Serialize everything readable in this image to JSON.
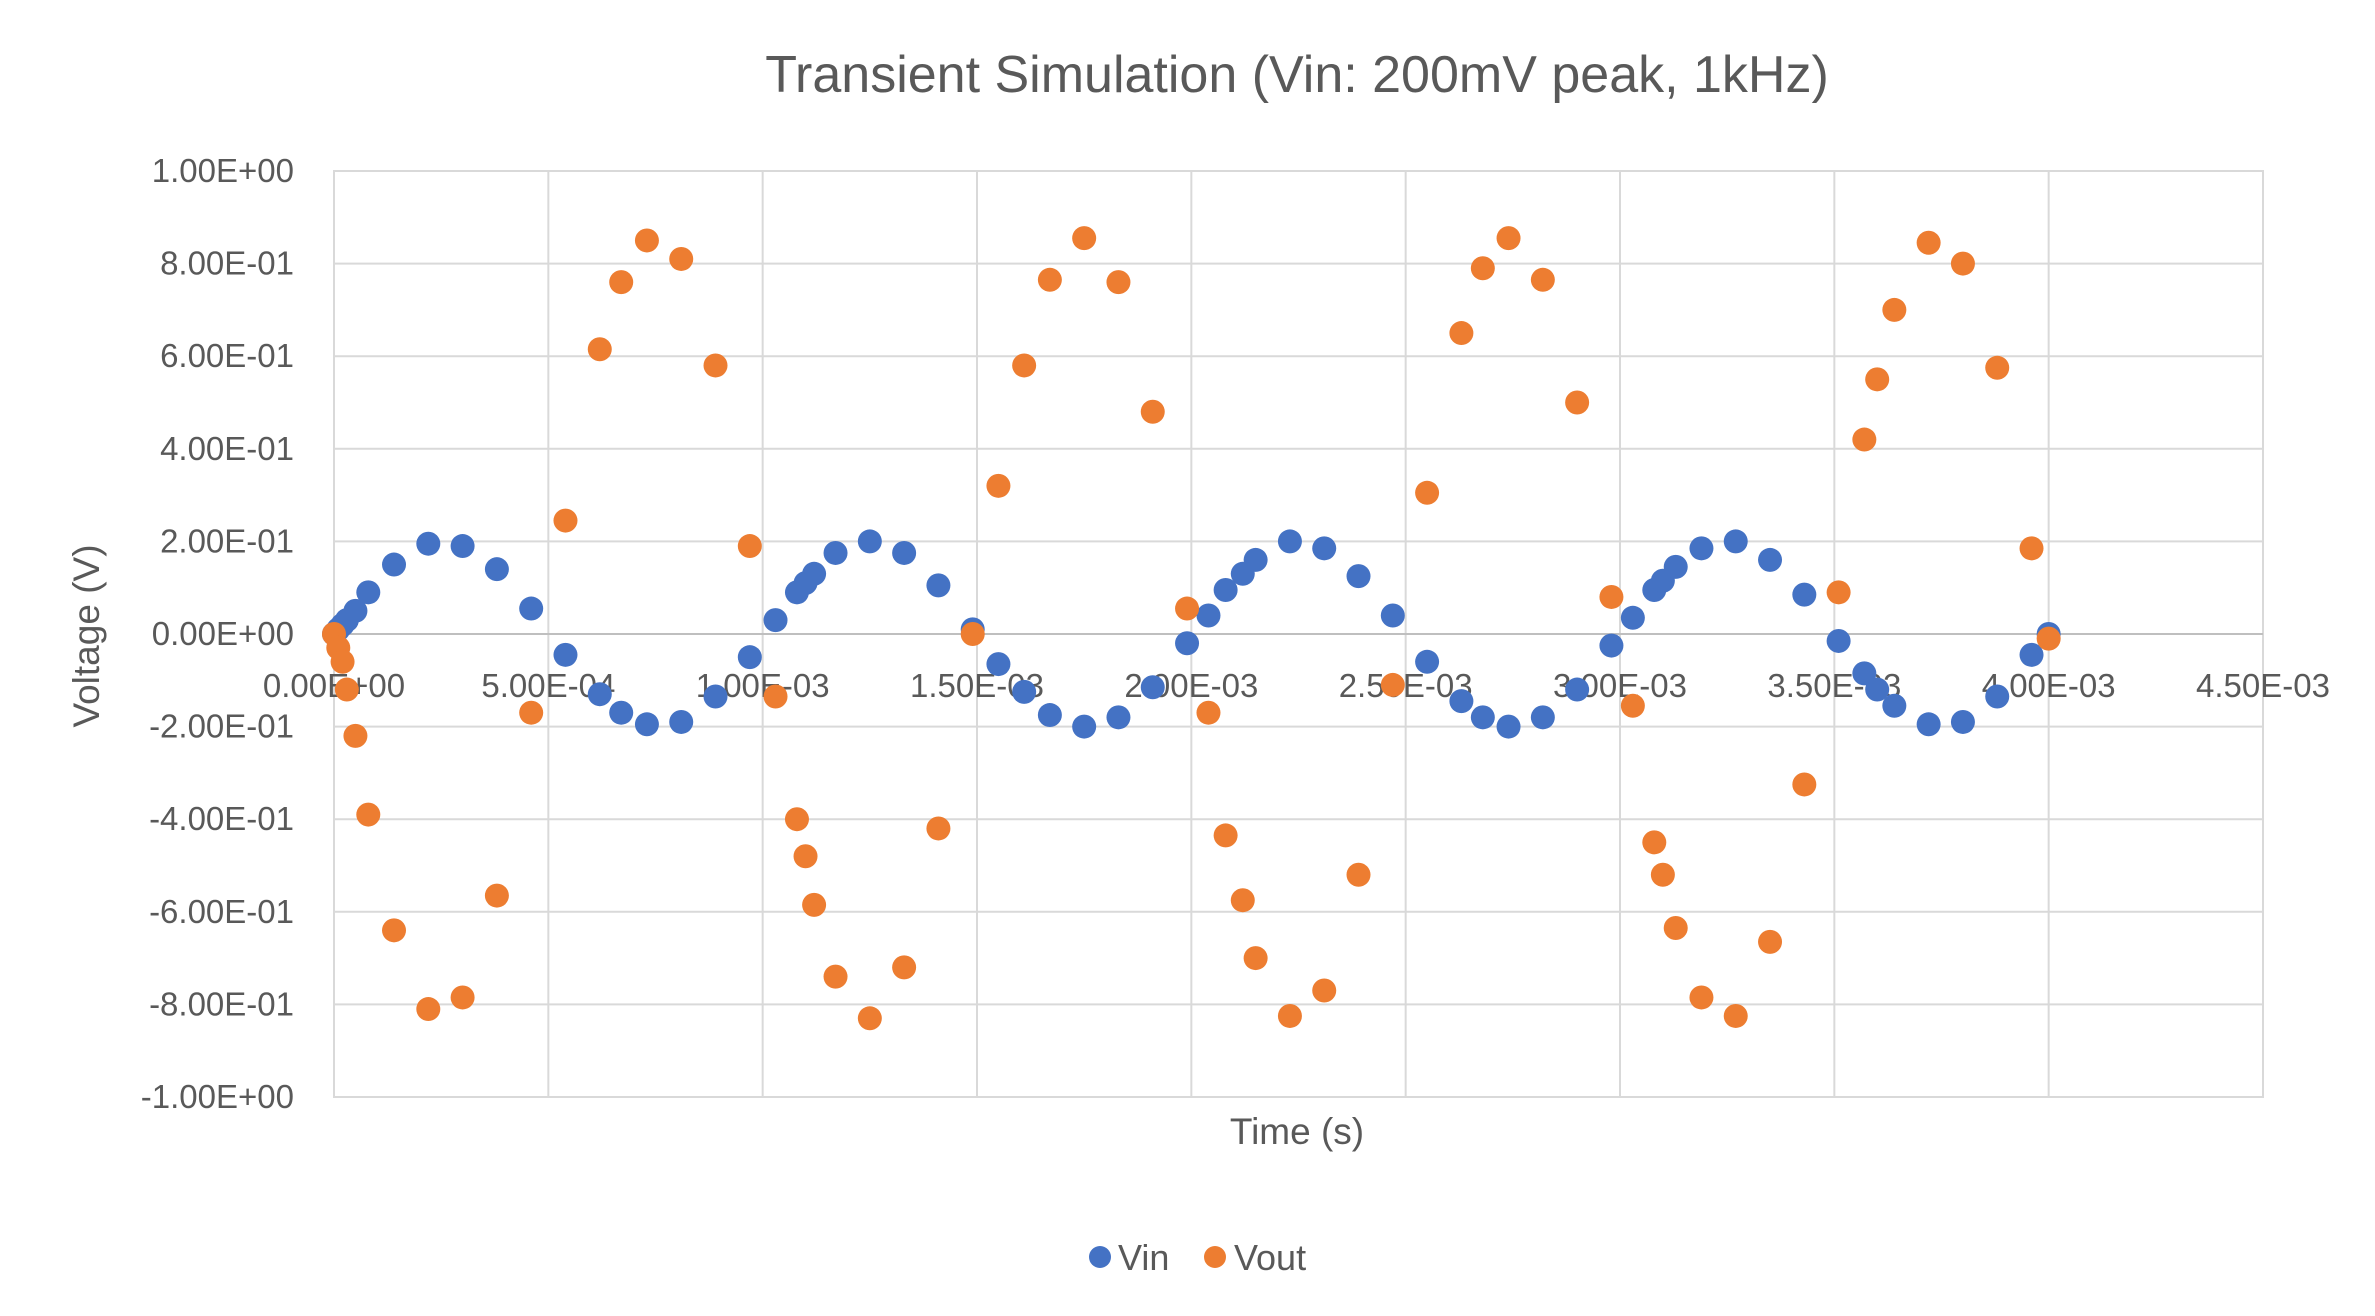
{
  "chart_data": {
    "type": "scatter",
    "title": "Transient Simulation (Vin: 200mV peak, 1kHz)",
    "xlabel": "Time (s)",
    "ylabel": "Voltage (V)",
    "xlim": [
      0,
      0.0045
    ],
    "ylim": [
      -1.0,
      1.0
    ],
    "x_ticks": [
      0,
      0.0005,
      0.001,
      0.0015,
      0.002,
      0.0025,
      0.003,
      0.0035,
      0.004,
      0.0045
    ],
    "x_tick_labels": [
      "0.00E+00",
      "5.00E-04",
      "1.00E-03",
      "1.50E-03",
      "2.00E-03",
      "2.50E-03",
      "3.00E-03",
      "3.50E-03",
      "4.00E-03",
      "4.50E-03"
    ],
    "y_ticks": [
      1.0,
      0.8,
      0.6,
      0.4,
      0.2,
      0.0,
      -0.2,
      -0.4,
      -0.6,
      -0.8,
      -1.0
    ],
    "y_tick_labels": [
      "1.00E+00",
      "8.00E-01",
      "6.00E-01",
      "4.00E-01",
      "2.00E-01",
      "0.00E+00",
      "-2.00E-01",
      "-4.00E-01",
      "-6.00E-01",
      "-8.00E-01",
      "-1.00E+00"
    ],
    "grid": true,
    "legend_position": "bottom",
    "series": [
      {
        "name": "Vin",
        "color": "#4472C4",
        "points": [
          [
            0.0,
            0.0
          ],
          [
            1e-05,
            0.01
          ],
          [
            2e-05,
            0.02
          ],
          [
            3e-05,
            0.03
          ],
          [
            5e-05,
            0.05
          ],
          [
            8e-05,
            0.09
          ],
          [
            0.00014,
            0.15
          ],
          [
            0.00022,
            0.195
          ],
          [
            0.0003,
            0.19
          ],
          [
            0.00038,
            0.14
          ],
          [
            0.00046,
            0.055
          ],
          [
            0.00054,
            -0.045
          ],
          [
            0.00062,
            -0.13
          ],
          [
            0.00067,
            -0.17
          ],
          [
            0.00073,
            -0.195
          ],
          [
            0.00081,
            -0.19
          ],
          [
            0.00089,
            -0.135
          ],
          [
            0.00097,
            -0.05
          ],
          [
            0.00103,
            0.03
          ],
          [
            0.00108,
            0.09
          ],
          [
            0.0011,
            0.11
          ],
          [
            0.00112,
            0.13
          ],
          [
            0.00117,
            0.175
          ],
          [
            0.00125,
            0.2
          ],
          [
            0.00133,
            0.175
          ],
          [
            0.00141,
            0.105
          ],
          [
            0.00149,
            0.01
          ],
          [
            0.00155,
            -0.065
          ],
          [
            0.00161,
            -0.125
          ],
          [
            0.00167,
            -0.175
          ],
          [
            0.00175,
            -0.2
          ],
          [
            0.00183,
            -0.18
          ],
          [
            0.00191,
            -0.115
          ],
          [
            0.00199,
            -0.02
          ],
          [
            0.00204,
            0.04
          ],
          [
            0.00208,
            0.095
          ],
          [
            0.00212,
            0.13
          ],
          [
            0.00215,
            0.16
          ],
          [
            0.00223,
            0.2
          ],
          [
            0.00231,
            0.185
          ],
          [
            0.00239,
            0.125
          ],
          [
            0.00247,
            0.04
          ],
          [
            0.00255,
            -0.06
          ],
          [
            0.00263,
            -0.145
          ],
          [
            0.00268,
            -0.18
          ],
          [
            0.00274,
            -0.2
          ],
          [
            0.00282,
            -0.18
          ],
          [
            0.0029,
            -0.12
          ],
          [
            0.00298,
            -0.025
          ],
          [
            0.00303,
            0.035
          ],
          [
            0.00308,
            0.095
          ],
          [
            0.0031,
            0.115
          ],
          [
            0.00313,
            0.145
          ],
          [
            0.00319,
            0.185
          ],
          [
            0.00327,
            0.2
          ],
          [
            0.00335,
            0.16
          ],
          [
            0.00343,
            0.085
          ],
          [
            0.00351,
            -0.015
          ],
          [
            0.00357,
            -0.085
          ],
          [
            0.0036,
            -0.12
          ],
          [
            0.00364,
            -0.155
          ],
          [
            0.00372,
            -0.195
          ],
          [
            0.0038,
            -0.19
          ],
          [
            0.00388,
            -0.135
          ],
          [
            0.00396,
            -0.045
          ],
          [
            0.004,
            0.0
          ]
        ]
      },
      {
        "name": "Vout",
        "color": "#ED7D31",
        "points": [
          [
            0.0,
            0.0
          ],
          [
            1e-05,
            -0.03
          ],
          [
            2e-05,
            -0.06
          ],
          [
            3e-05,
            -0.12
          ],
          [
            5e-05,
            -0.22
          ],
          [
            8e-05,
            -0.39
          ],
          [
            0.00014,
            -0.64
          ],
          [
            0.00022,
            -0.81
          ],
          [
            0.0003,
            -0.785
          ],
          [
            0.00038,
            -0.565
          ],
          [
            0.00046,
            -0.17
          ],
          [
            0.00054,
            0.245
          ],
          [
            0.00062,
            0.615
          ],
          [
            0.00067,
            0.76
          ],
          [
            0.00073,
            0.85
          ],
          [
            0.00081,
            0.81
          ],
          [
            0.00089,
            0.58
          ],
          [
            0.00097,
            0.19
          ],
          [
            0.00103,
            -0.135
          ],
          [
            0.00108,
            -0.4
          ],
          [
            0.0011,
            -0.48
          ],
          [
            0.00112,
            -0.585
          ],
          [
            0.00117,
            -0.74
          ],
          [
            0.00125,
            -0.83
          ],
          [
            0.00133,
            -0.72
          ],
          [
            0.00141,
            -0.42
          ],
          [
            0.00149,
            0.0
          ],
          [
            0.00155,
            0.32
          ],
          [
            0.00161,
            0.58
          ],
          [
            0.00167,
            0.765
          ],
          [
            0.00175,
            0.855
          ],
          [
            0.00183,
            0.76
          ],
          [
            0.00191,
            0.48
          ],
          [
            0.00199,
            0.055
          ],
          [
            0.00204,
            -0.17
          ],
          [
            0.00208,
            -0.435
          ],
          [
            0.00212,
            -0.575
          ],
          [
            0.00215,
            -0.7
          ],
          [
            0.00223,
            -0.825
          ],
          [
            0.00231,
            -0.77
          ],
          [
            0.00239,
            -0.52
          ],
          [
            0.00247,
            -0.11
          ],
          [
            0.00255,
            0.305
          ],
          [
            0.00263,
            0.65
          ],
          [
            0.00268,
            0.79
          ],
          [
            0.00274,
            0.855
          ],
          [
            0.00282,
            0.765
          ],
          [
            0.0029,
            0.5
          ],
          [
            0.00298,
            0.08
          ],
          [
            0.00303,
            -0.155
          ],
          [
            0.00308,
            -0.45
          ],
          [
            0.0031,
            -0.52
          ],
          [
            0.00313,
            -0.635
          ],
          [
            0.00319,
            -0.785
          ],
          [
            0.00327,
            -0.825
          ],
          [
            0.00335,
            -0.665
          ],
          [
            0.00343,
            -0.325
          ],
          [
            0.00351,
            0.09
          ],
          [
            0.00357,
            0.42
          ],
          [
            0.0036,
            0.55
          ],
          [
            0.00364,
            0.7
          ],
          [
            0.00372,
            0.845
          ],
          [
            0.0038,
            0.8
          ],
          [
            0.00388,
            0.575
          ],
          [
            0.00396,
            0.185
          ],
          [
            0.004,
            -0.01
          ]
        ]
      }
    ]
  }
}
